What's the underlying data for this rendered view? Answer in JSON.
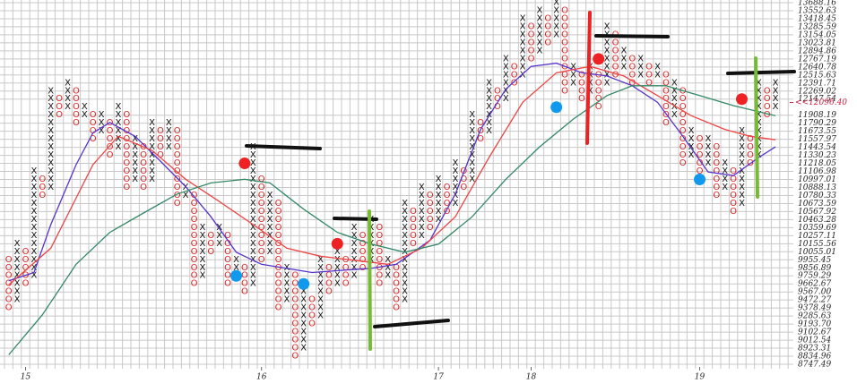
{
  "chart_data": {
    "type": "point-and-figure",
    "log_scale": true,
    "grid": true,
    "ylim": [
      8747.49,
      13688.16
    ],
    "yticks": [
      13688.16,
      13552.63,
      13418.45,
      13285.59,
      13154.05,
      13023.81,
      12894.86,
      12767.19,
      12640.78,
      12515.63,
      12391.71,
      12269.02,
      12147.54,
      11908.19,
      11790.29,
      11673.55,
      11557.97,
      11443.54,
      11330.23,
      11218.05,
      11106.98,
      10997.01,
      10888.13,
      10780.33,
      10673.59,
      10567.92,
      10463.28,
      10359.69,
      10257.11,
      10155.56,
      10055.01,
      9955.45,
      9856.89,
      9759.29,
      9662.67,
      {
        "value": 9567,
        "label": "9567.00"
      },
      9472.27,
      9378.49,
      9285.63,
      {
        "value": 9193.7,
        "label": "9193.70"
      },
      9102.67,
      9012.54,
      8923.31,
      8834.96,
      8747.49
    ],
    "last_price": {
      "value": 12096.4,
      "label": "<<12096.40",
      "color": "#cc2244"
    },
    "xticks": [
      {
        "value": 2,
        "label": "15"
      },
      {
        "value": 30,
        "label": "16"
      },
      {
        "value": 51,
        "label": "17"
      },
      {
        "value": 62,
        "label": "18"
      },
      {
        "value": 82,
        "label": "19"
      }
    ],
    "x_color": "#111111",
    "o_color": "#dd2222",
    "columns": [
      {
        "t": "O",
        "high": 9955.45,
        "low": 9378.49
      },
      {
        "t": "X",
        "high": 10155.56,
        "low": 9472.27
      },
      {
        "t": "O",
        "high": 10055.01,
        "low": 9662.67
      },
      {
        "t": "X",
        "high": 11106.98,
        "low": 9759.29
      },
      {
        "t": "O",
        "high": 10997.01,
        "low": 10780.33
      },
      {
        "t": "X",
        "high": 12269.02,
        "low": 10888.13
      },
      {
        "t": "O",
        "high": 12147.54,
        "low": 11908.19
      },
      {
        "t": "X",
        "high": 12391.71,
        "low": 12027
      },
      {
        "t": "O",
        "high": 12269.02,
        "low": 11790.29
      },
      {
        "t": "X",
        "high": 12027,
        "low": 11908.19
      },
      {
        "t": "O",
        "high": 11908.19,
        "low": 11557.97
      },
      {
        "t": "X",
        "high": 11908.19,
        "low": 11673.55
      },
      {
        "t": "O",
        "high": 11790.29,
        "low": 11330.23
      },
      {
        "t": "X",
        "high": 12027,
        "low": 11443.54
      },
      {
        "t": "O",
        "high": 11908.19,
        "low": 10888.13
      },
      {
        "t": "X",
        "high": 11557.97,
        "low": 10997.01
      },
      {
        "t": "O",
        "high": 11443.54,
        "low": 10888.13
      },
      {
        "t": "X",
        "high": 11790.29,
        "low": 10997.01
      },
      {
        "t": "O",
        "high": 11673.55,
        "low": 11330.23
      },
      {
        "t": "X",
        "high": 11790.29,
        "low": 11443.54
      },
      {
        "t": "O",
        "high": 11673.55,
        "low": 10673.59
      },
      {
        "t": "X",
        "high": 10888.13,
        "low": 10780.33
      },
      {
        "t": "O",
        "high": 10780.33,
        "low": 9662.67
      },
      {
        "t": "X",
        "high": 10359.69,
        "low": 9759.29
      },
      {
        "t": "O",
        "high": 10257.11,
        "low": 10055.01
      },
      {
        "t": "X",
        "high": 10359.69,
        "low": 10155.56
      },
      {
        "t": "O",
        "high": 10257.11,
        "low": 9662.67
      },
      {
        "t": "X",
        "high": 9955.45,
        "low": 9759.29
      },
      {
        "t": "O",
        "high": 9856.89,
        "low": 9567
      },
      {
        "t": "X",
        "high": 11443.54,
        "low": 9662.67
      },
      {
        "t": "O",
        "high": 10997.01,
        "low": 9955.45
      },
      {
        "t": "X",
        "high": 10780.33,
        "low": 10055.01
      },
      {
        "t": "O",
        "high": 10673.59,
        "low": 9378.49
      },
      {
        "t": "X",
        "high": 9856.89,
        "low": 9472.27
      },
      {
        "t": "O",
        "high": 9759.29,
        "low": 8834.96
      },
      {
        "t": "X",
        "high": 9567,
        "low": 8923.31
      },
      {
        "t": "O",
        "high": 9472.27,
        "low": 9193.7
      },
      {
        "t": "X",
        "high": 9955.45,
        "low": 9285.63
      },
      {
        "t": "O",
        "high": 9856.89,
        "low": 9567
      },
      {
        "t": "X",
        "high": 10055.01,
        "low": 9662.67
      },
      {
        "t": "O",
        "high": 9955.45,
        "low": 9662.67
      },
      {
        "t": "X",
        "high": 10359.69,
        "low": 9759.29
      },
      {
        "t": "O",
        "high": 10257.11,
        "low": 9856.89
      },
      {
        "t": "X",
        "high": 10463.28,
        "low": 9955.45
      },
      {
        "t": "O",
        "high": 10359.69,
        "low": 9662.67
      },
      {
        "t": "X",
        "high": 9955.45,
        "low": 9759.29
      },
      {
        "t": "O",
        "high": 9856.89,
        "low": 9378.49
      },
      {
        "t": "X",
        "high": 10673.59,
        "low": 9472.27
      },
      {
        "t": "O",
        "high": 10567.92,
        "low": 10155.56
      },
      {
        "t": "X",
        "high": 10888.13,
        "low": 10257.11
      },
      {
        "t": "O",
        "high": 10780.33,
        "low": 10359.69
      },
      {
        "t": "X",
        "high": 10997.01,
        "low": 10463.28
      },
      {
        "t": "O",
        "high": 10888.13,
        "low": 10567.92
      },
      {
        "t": "X",
        "high": 11218.05,
        "low": 10673.59
      },
      {
        "t": "O",
        "high": 11106.98,
        "low": 10888.13
      },
      {
        "t": "X",
        "high": 11908.19,
        "low": 10997.01
      },
      {
        "t": "O",
        "high": 11790.29,
        "low": 11557.97
      },
      {
        "t": "X",
        "high": 12391.71,
        "low": 11673.55
      },
      {
        "t": "O",
        "high": 12269.02,
        "low": 12027
      },
      {
        "t": "X",
        "high": 12767.19,
        "low": 12147.54
      },
      {
        "t": "O",
        "high": 12640.78,
        "low": 12391.71
      },
      {
        "t": "X",
        "high": 13418.45,
        "low": 12515.63
      },
      {
        "t": "O",
        "high": 13285.59,
        "low": 12767.19
      },
      {
        "t": "X",
        "high": 13552.63,
        "low": 12894.86
      },
      {
        "t": "O",
        "high": 13418.45,
        "low": 13023.81
      },
      {
        "t": "X",
        "high": 13688.16,
        "low": 13154.05
      },
      {
        "t": "O",
        "high": 13552.63,
        "low": 12269.02
      },
      {
        "t": "X",
        "high": 12640.78,
        "low": 12391.71
      },
      {
        "t": "O",
        "high": 12515.63,
        "low": 12147.54
      },
      {
        "t": "X",
        "high": 12640.78,
        "low": 12269.02
      },
      {
        "t": "O",
        "high": 12515.63,
        "low": 12027
      },
      {
        "t": "X",
        "high": 13285.59,
        "low": 12391.71
      },
      {
        "t": "O",
        "high": 13154.05,
        "low": 12515.63
      },
      {
        "t": "X",
        "high": 12894.86,
        "low": 12640.78
      },
      {
        "t": "O",
        "high": 12767.19,
        "low": 12391.71
      },
      {
        "t": "X",
        "high": 12767.19,
        "low": 12515.63
      },
      {
        "t": "O",
        "high": 12640.78,
        "low": 12391.71
      },
      {
        "t": "X",
        "high": 12640.78,
        "low": 12515.63
      },
      {
        "t": "O",
        "high": 12515.63,
        "low": 11790.29
      },
      {
        "t": "X",
        "high": 12391.71,
        "low": 11908.19
      },
      {
        "t": "O",
        "high": 12269.02,
        "low": 11218.05
      },
      {
        "t": "X",
        "high": 11673.55,
        "low": 11330.23
      },
      {
        "t": "O",
        "high": 11557.97,
        "low": 11106.98
      },
      {
        "t": "X",
        "high": 11557.97,
        "low": 11218.05
      },
      {
        "t": "O",
        "high": 11443.54,
        "low": 10780.33
      },
      {
        "t": "X",
        "high": 11218.05,
        "low": 10888.13
      },
      {
        "t": "O",
        "high": 11106.98,
        "low": 10567.92
      },
      {
        "t": "X",
        "high": 11673.55,
        "low": 10673.59
      },
      {
        "t": "O",
        "high": 11557.97,
        "low": 11218.05
      },
      {
        "t": "X",
        "high": 12391.71,
        "low": 11330.23
      },
      {
        "t": "O",
        "high": 12269.02,
        "low": 11908.19
      },
      {
        "t": "X",
        "high": 12391.71,
        "low": 12027
      }
    ],
    "lines": [
      {
        "color": "#5533cc",
        "x": [
          0,
          3,
          5,
          8,
          10,
          12,
          15,
          18,
          21,
          24,
          27,
          30,
          33,
          36,
          40,
          43,
          46,
          50,
          53,
          56,
          59,
          62,
          65,
          68,
          71,
          74,
          77,
          80,
          83,
          86,
          89,
          91
        ],
        "values": [
          9700,
          9800,
          10400,
          11200,
          11650,
          11800,
          11600,
          11250,
          10900,
          10500,
          10050,
          9900,
          9850,
          9800,
          9830,
          9850,
          9900,
          10200,
          10800,
          11700,
          12300,
          12650,
          12700,
          12550,
          12500,
          12350,
          12100,
          11600,
          11100,
          11050,
          11300,
          11450
        ]
      },
      {
        "color": "#ee4444",
        "x": [
          0,
          5,
          10,
          13,
          17,
          21,
          25,
          29,
          33,
          37,
          41,
          45,
          49,
          53,
          57,
          61,
          65,
          69,
          73,
          77,
          81,
          85,
          88,
          91
        ],
        "values": [
          9650,
          10100,
          11200,
          11600,
          11400,
          11000,
          10700,
          10400,
          10100,
          10000,
          9950,
          9900,
          10100,
          10500,
          11300,
          12100,
          12550,
          12650,
          12500,
          12200,
          11900,
          11700,
          11600,
          11550
        ]
      },
      {
        "color": "#338866",
        "x": [
          0,
          4,
          8,
          12,
          16,
          20,
          24,
          28,
          31,
          35,
          39,
          43,
          47,
          51,
          55,
          59,
          63,
          67,
          71,
          74,
          78,
          82,
          86,
          91
        ],
        "values": [
          8850,
          9300,
          9900,
          10300,
          10550,
          10800,
          10950,
          11000,
          10950,
          10600,
          10300,
          10150,
          10050,
          10150,
          10500,
          11000,
          11450,
          11850,
          12200,
          12350,
          12350,
          12200,
          12050,
          11900
        ]
      }
    ],
    "signals": [
      {
        "x": 28,
        "value": 11218.05,
        "color": "#ee2222"
      },
      {
        "x": 39,
        "value": 10155.56,
        "color": "#ee2222"
      },
      {
        "x": 70,
        "value": 12767.19,
        "color": "#ee2222"
      },
      {
        "x": 87,
        "value": 12147.54,
        "color": "#ee2222"
      },
      {
        "x": 27,
        "value": 9759.29,
        "color": "#1199ee"
      },
      {
        "x": 35,
        "value": 9662.67,
        "color": "#1199ee"
      },
      {
        "x": 65,
        "value": 12027,
        "color": "#1199ee"
      },
      {
        "x": 82,
        "value": 10997.01,
        "color": "#1199ee"
      }
    ]
  }
}
